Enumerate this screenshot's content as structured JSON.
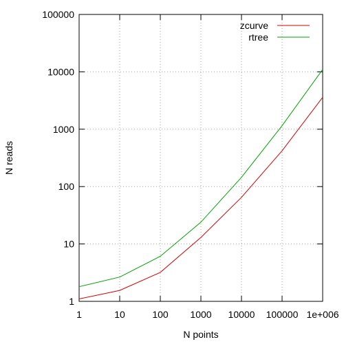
{
  "chart_data": {
    "type": "line",
    "title": "",
    "xlabel": "N points",
    "ylabel": "N reads",
    "x_scale": "log",
    "y_scale": "log",
    "xlim": [
      1,
      1000000
    ],
    "ylim": [
      1,
      100000
    ],
    "grid": true,
    "legend_position": "top-right",
    "x_ticks": [
      {
        "value": 1,
        "label": "1"
      },
      {
        "value": 10,
        "label": "10"
      },
      {
        "value": 100,
        "label": "100"
      },
      {
        "value": 1000,
        "label": "1000"
      },
      {
        "value": 10000,
        "label": "10000"
      },
      {
        "value": 100000,
        "label": "100000"
      },
      {
        "value": 1000000,
        "label": "1e+006"
      }
    ],
    "y_ticks": [
      {
        "value": 1,
        "label": "1"
      },
      {
        "value": 10,
        "label": "10"
      },
      {
        "value": 100,
        "label": "100"
      },
      {
        "value": 1000,
        "label": "1000"
      },
      {
        "value": 10000,
        "label": "10000"
      },
      {
        "value": 100000,
        "label": "100000"
      }
    ],
    "series": [
      {
        "name": "zcurve",
        "color": "#d40000",
        "points": [
          {
            "x": 1,
            "y": 1.1
          },
          {
            "x": 10,
            "y": 1.55
          },
          {
            "x": 100,
            "y": 3.2
          },
          {
            "x": 1000,
            "y": 13
          },
          {
            "x": 10000,
            "y": 65
          },
          {
            "x": 100000,
            "y": 420
          },
          {
            "x": 1000000,
            "y": 3600
          }
        ]
      },
      {
        "name": "rtree",
        "color": "#00a000",
        "points": [
          {
            "x": 1,
            "y": 1.8
          },
          {
            "x": 10,
            "y": 2.65
          },
          {
            "x": 100,
            "y": 6.1
          },
          {
            "x": 1000,
            "y": 24
          },
          {
            "x": 10000,
            "y": 145
          },
          {
            "x": 100000,
            "y": 1150
          },
          {
            "x": 1000000,
            "y": 11000
          }
        ]
      }
    ]
  }
}
